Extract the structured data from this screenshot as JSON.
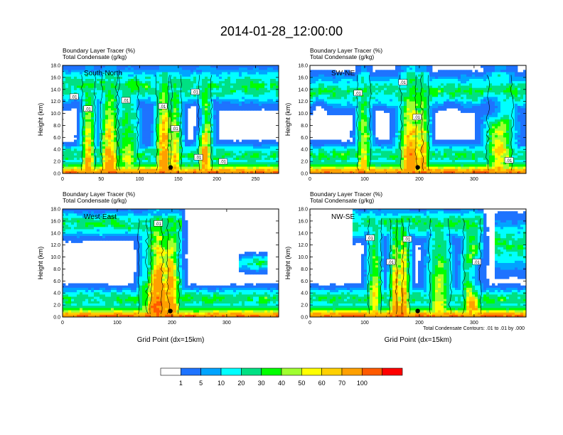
{
  "figure_title": "2014-01-28_12:00:00",
  "panel_line1": "Boundary Layer Tracer    (%)",
  "panel_line2": "Total Condensate    (g/kg)",
  "ylabel": "Height (km)",
  "xlabel": "Grid Point (dx=15km)",
  "footnote": "Total Condensate Contours: .01 to .01 by .000",
  "contour_label": ".01",
  "chart_data": [
    {
      "type": "heatmap",
      "label": "South-North",
      "ylim": [
        0,
        18
      ],
      "yticks": [
        "0.0",
        "2.0",
        "4.0",
        "6.0",
        "8.0",
        "10.0",
        "12.0",
        "14.0",
        "16.0",
        "18.0"
      ],
      "xlim": [
        0,
        280
      ],
      "xticks": [
        "0",
        "50",
        "100",
        "150",
        "200",
        "250"
      ],
      "marker": {
        "x": 140,
        "y": 1.0
      },
      "show_xlabel": false,
      "contour_labels_at": [
        [
          15,
          12.8
        ],
        [
          33,
          10.8
        ],
        [
          82,
          12.2
        ],
        [
          130,
          11.2
        ],
        [
          146,
          7.5
        ],
        [
          172,
          13.6
        ],
        [
          176,
          2.7
        ],
        [
          208,
          2.0
        ]
      ]
    },
    {
      "type": "heatmap",
      "label": "SW-NE",
      "ylim": [
        0,
        18
      ],
      "yticks": [
        "0.0",
        "2.0",
        "4.0",
        "6.0",
        "8.0",
        "10.0",
        "12.0",
        "14.0",
        "16.0",
        "18.0"
      ],
      "xlim": [
        0,
        395
      ],
      "xticks": [
        "0",
        "100",
        "200",
        "300"
      ],
      "marker": {
        "x": 197,
        "y": 1.0
      },
      "show_xlabel": false,
      "contour_labels_at": [
        [
          88,
          13.4
        ],
        [
          170,
          15.2
        ],
        [
          196,
          9.4
        ],
        [
          364,
          2.2
        ]
      ]
    },
    {
      "type": "heatmap",
      "label": "West-East",
      "ylim": [
        0,
        18
      ],
      "yticks": [
        "0.0",
        "2.0",
        "4.0",
        "6.0",
        "8.0",
        "10.0",
        "12.0",
        "14.0",
        "16.0",
        "18.0"
      ],
      "xlim": [
        0,
        395
      ],
      "xticks": [
        "0",
        "100",
        "200",
        "300"
      ],
      "marker": {
        "x": 197,
        "y": 1.0
      },
      "show_xlabel": true,
      "contour_labels_at": [
        [
          175,
          15.6
        ]
      ]
    },
    {
      "type": "heatmap",
      "label": "NW-SE",
      "ylim": [
        0,
        18
      ],
      "yticks": [
        "0.0",
        "2.0",
        "4.0",
        "6.0",
        "8.0",
        "10.0",
        "12.0",
        "14.0",
        "16.0",
        "18.0"
      ],
      "xlim": [
        0,
        395
      ],
      "xticks": [
        "0",
        "100",
        "200",
        "300"
      ],
      "marker": {
        "x": 197,
        "y": 1.0
      },
      "show_xlabel": true,
      "contour_labels_at": [
        [
          110,
          13.2
        ],
        [
          148,
          9.2
        ],
        [
          178,
          13.0
        ],
        [
          305,
          9.2
        ]
      ]
    }
  ],
  "colorbar": {
    "labels": [
      "1",
      "5",
      "10",
      "20",
      "30",
      "40",
      "50",
      "60",
      "70",
      "100"
    ],
    "colors": [
      "#ffffff",
      "#1e73ff",
      "#00a4ff",
      "#00ffff",
      "#00e083",
      "#00ff00",
      "#a0ff30",
      "#ffff00",
      "#ffd000",
      "#ffa000",
      "#ff5a00",
      "#ff0000"
    ]
  }
}
